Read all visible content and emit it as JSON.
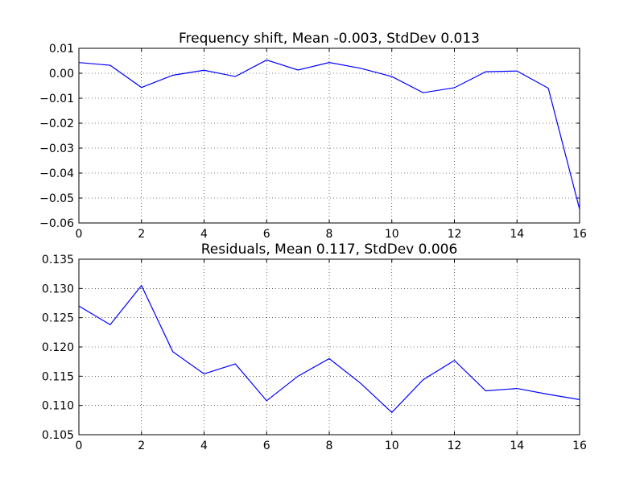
{
  "chart_data": [
    {
      "type": "line",
      "title": "Frequency shift, Mean -0.003, StdDev 0.013",
      "xlabel": "",
      "ylabel": "",
      "xlim": [
        0,
        16
      ],
      "ylim": [
        -0.06,
        0.01
      ],
      "xticks": [
        0,
        2,
        4,
        6,
        8,
        10,
        12,
        14,
        16
      ],
      "xtick_labels": [
        "0",
        "2",
        "4",
        "6",
        "8",
        "10",
        "12",
        "14",
        "16"
      ],
      "yticks": [
        0.01,
        0.0,
        -0.01,
        -0.02,
        -0.03,
        -0.04,
        -0.05,
        -0.06
      ],
      "ytick_labels": [
        "0.01",
        "0.00",
        "−0.01",
        "−0.02",
        "−0.03",
        "−0.04",
        "−0.05",
        "−0.06"
      ],
      "grid": true,
      "color": "#0000ff",
      "x": [
        0,
        1,
        2,
        3,
        4,
        5,
        6,
        7,
        8,
        9,
        10,
        11,
        12,
        13,
        14,
        15,
        16
      ],
      "y": [
        0.0043,
        0.0032,
        -0.0057,
        -0.0008,
        0.0012,
        -0.0013,
        0.0053,
        0.0013,
        0.0043,
        0.002,
        -0.0013,
        -0.0078,
        -0.0058,
        0.0006,
        0.0009,
        -0.006,
        -0.0545
      ]
    },
    {
      "type": "line",
      "title": "Residuals, Mean 0.117, StdDev 0.006",
      "xlabel": "",
      "ylabel": "",
      "xlim": [
        0,
        16
      ],
      "ylim": [
        0.105,
        0.135
      ],
      "xticks": [
        0,
        2,
        4,
        6,
        8,
        10,
        12,
        14,
        16
      ],
      "xtick_labels": [
        "0",
        "2",
        "4",
        "6",
        "8",
        "10",
        "12",
        "14",
        "16"
      ],
      "yticks": [
        0.135,
        0.13,
        0.125,
        0.12,
        0.115,
        0.11,
        0.105
      ],
      "ytick_labels": [
        "0.135",
        "0.130",
        "0.125",
        "0.120",
        "0.115",
        "0.110",
        "0.105"
      ],
      "grid": true,
      "color": "#0000ff",
      "x": [
        0,
        1,
        2,
        3,
        4,
        5,
        6,
        7,
        8,
        9,
        10,
        11,
        12,
        13,
        14,
        15,
        16
      ],
      "y": [
        0.127,
        0.1238,
        0.1305,
        0.1192,
        0.1154,
        0.1171,
        0.1108,
        0.115,
        0.118,
        0.1138,
        0.1088,
        0.1144,
        0.1177,
        0.1125,
        0.1129,
        0.1119,
        0.111
      ]
    }
  ]
}
